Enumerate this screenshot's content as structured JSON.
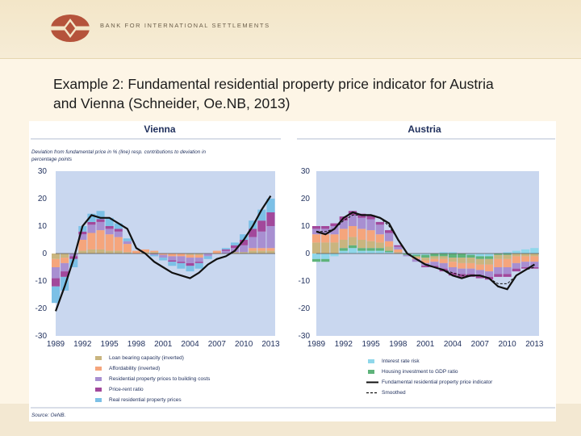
{
  "header": {
    "bank_name": "BANK FOR INTERNATIONAL SETTLEMENTS",
    "colors": {
      "logo": "#b5533b",
      "band": "#f3e6c8"
    }
  },
  "slide": {
    "title_line1": "Example 2: Fundamental residential property price indicator for Austria",
    "title_line2": "and Vienna (Schneider, Oe.NB, 2013)"
  },
  "figure": {
    "source": "Source: OeNB.",
    "colors": {
      "panel_bg": "#c9d7ef",
      "loan": "#c9b57f",
      "afford": "#f5a57c",
      "resid": "#a88fd1",
      "rent": "#a2489b",
      "real": "#7cc0e6",
      "interest": "#8fd7ea",
      "housing": "#5eb37a",
      "line": "#111111"
    }
  },
  "chart_data": [
    {
      "type": "area",
      "title": "Vienna",
      "subtitle_line1": "Deviation from fundamental price in % (line) resp. contributions to deviation in",
      "subtitle_line2": "percentage points",
      "xlim": [
        1989,
        2013.5
      ],
      "ylim": [
        -30,
        30
      ],
      "yticks": [
        30,
        20,
        10,
        0,
        -10,
        -20,
        -30
      ],
      "xticks": [
        1989,
        1992,
        1995,
        1998,
        2001,
        2004,
        2007,
        2010,
        2013
      ],
      "x": [
        1989,
        1990,
        1991,
        1992,
        1993,
        1994,
        1995,
        1996,
        1997,
        1998,
        1999,
        2000,
        2001,
        2002,
        2003,
        2004,
        2005,
        2006,
        2007,
        2008,
        2009,
        2010,
        2011,
        2012,
        2013
      ],
      "series": [
        {
          "name": "Loan bearing capacity (inverted)",
          "color_key": "loan",
          "values": [
            -2,
            -1.5,
            0,
            1,
            1.5,
            1.5,
            1,
            1,
            0.5,
            0,
            0.5,
            0.5,
            0,
            0,
            0,
            -0.5,
            -0.5,
            0,
            0,
            0,
            0.5,
            0.5,
            1,
            1,
            1
          ]
        },
        {
          "name": "Affordability (inverted)",
          "color_key": "afford",
          "values": [
            -3,
            -2,
            0,
            4,
            6,
            7,
            6,
            5,
            3,
            1,
            1,
            0.5,
            -0.5,
            -1,
            -1,
            -1,
            -1,
            0,
            1,
            0,
            0,
            0,
            1,
            1,
            1
          ]
        },
        {
          "name": "Residential property prices to building costs",
          "color_key": "resid",
          "values": [
            -4,
            -3,
            -1,
            2,
            3,
            3,
            2,
            2,
            1,
            0,
            0,
            -0.5,
            -1,
            -1.5,
            -2,
            -2,
            -1.5,
            -1,
            0,
            1,
            1.5,
            2.5,
            4,
            6,
            8
          ]
        },
        {
          "name": "Price-rent ratio",
          "color_key": "rent",
          "values": [
            -3,
            -2,
            -1,
            1,
            1,
            1,
            1,
            1,
            0,
            0,
            0,
            0,
            0,
            -0.5,
            -0.5,
            -1,
            -0.5,
            0,
            0,
            0.5,
            1,
            2,
            3,
            4,
            5
          ]
        },
        {
          "name": "Real residential property prices",
          "color_key": "real",
          "values": [
            -6,
            -5,
            -3,
            2,
            3,
            3,
            3,
            2,
            1,
            0,
            0,
            -0.5,
            -1,
            -1.5,
            -2,
            -2,
            -2,
            -1,
            0,
            0.5,
            1,
            2,
            3,
            4,
            5
          ]
        }
      ],
      "line": {
        "name": "Deviation from fundamental price",
        "values": [
          -21,
          -12,
          -2,
          10,
          14,
          13,
          13,
          11,
          9,
          2,
          0,
          -3,
          -5,
          -7,
          -8,
          -9,
          -7,
          -4,
          -2,
          -1,
          1,
          5,
          10,
          16,
          21
        ]
      },
      "legend": [
        {
          "label": "Loan bearing capacity (inverted)",
          "color_key": "loan"
        },
        {
          "label": "Affordability (inverted)",
          "color_key": "afford"
        },
        {
          "label": "Residential property prices to building costs",
          "color_key": "resid"
        },
        {
          "label": "Price-rent ratio",
          "color_key": "rent"
        },
        {
          "label": "Real residential property prices",
          "color_key": "real"
        }
      ]
    },
    {
      "type": "area",
      "title": "Austria",
      "xlim": [
        1989,
        2013.5
      ],
      "ylim": [
        -30,
        30
      ],
      "yticks": [
        30,
        20,
        10,
        0,
        -10,
        -20,
        -30
      ],
      "xticks": [
        1989,
        1992,
        1995,
        1998,
        2001,
        2004,
        2007,
        2010,
        2013
      ],
      "x": [
        1989,
        1990,
        1991,
        1992,
        1993,
        1994,
        1995,
        1996,
        1997,
        1998,
        1999,
        2000,
        2001,
        2002,
        2003,
        2004,
        2005,
        2006,
        2007,
        2008,
        2009,
        2010,
        2011,
        2012,
        2013
      ],
      "series": [
        {
          "name": "Interest rate risk",
          "color_key": "interest",
          "values": [
            -2,
            -2,
            -1,
            1,
            2,
            1,
            1,
            1,
            0.5,
            0,
            0,
            -0.5,
            -0.5,
            0,
            0.5,
            0.5,
            0,
            -0.5,
            -1,
            -1,
            0,
            0.5,
            1,
            1.5,
            2
          ]
        },
        {
          "name": "Housing investment to GDP ratio",
          "color_key": "housing",
          "values": [
            -1,
            -1,
            0,
            1,
            1,
            1,
            1,
            1,
            0.5,
            0,
            -0.5,
            -0.5,
            -1,
            -1,
            -1,
            -1.5,
            -1.5,
            -1,
            -1,
            -1,
            -0.5,
            -0.5,
            0,
            0,
            0
          ]
        },
        {
          "name": "Loan bearing capacity (inverted)",
          "color_key": "loan",
          "values": [
            4,
            4,
            4,
            3,
            3,
            3,
            2.5,
            2,
            1.5,
            0.5,
            0,
            -0.5,
            -1,
            -1,
            -1,
            -1.5,
            -2,
            -2,
            -2,
            -2,
            -1.5,
            -1.5,
            -1,
            -1,
            -1
          ]
        },
        {
          "name": "Affordability (inverted)",
          "color_key": "afford",
          "values": [
            3,
            3,
            3,
            4,
            4,
            4,
            4,
            3,
            2,
            1,
            0,
            -0.5,
            -1,
            -1,
            -1.5,
            -2,
            -2,
            -2,
            -2,
            -2.5,
            -3,
            -3,
            -2.5,
            -2,
            -2
          ]
        },
        {
          "name": "Residential property prices to building costs",
          "color_key": "resid",
          "values": [
            2,
            2,
            3,
            3,
            4,
            4,
            4,
            3.5,
            3,
            1,
            -0.5,
            -1,
            -1,
            -1.5,
            -2,
            -2,
            -2,
            -2,
            -2,
            -2,
            -2.5,
            -2.5,
            -2,
            -2,
            -2
          ]
        },
        {
          "name": "Price-rent ratio",
          "color_key": "rent",
          "values": [
            1,
            1,
            1,
            1.5,
            1.5,
            1.5,
            1.5,
            1,
            1,
            0.5,
            0,
            0,
            -0.5,
            -0.5,
            -1,
            -1,
            -1,
            -1,
            -1,
            -1,
            -1,
            -1,
            -1,
            -0.5,
            -0.5
          ]
        }
      ],
      "line": {
        "name": "Fundamental residential property price indicator",
        "values": [
          8,
          7,
          9,
          13,
          15,
          14,
          14,
          13,
          11,
          5,
          0,
          -2,
          -4,
          -5,
          -6,
          -8,
          -9,
          -8,
          -8,
          -9,
          -12,
          -13,
          -8,
          -6,
          -4
        ]
      },
      "smoothed": {
        "name": "Smoothed",
        "values": [
          8,
          8,
          9,
          12,
          14,
          14,
          14,
          13,
          10,
          5,
          0,
          -2,
          -4,
          -5,
          -6,
          -7,
          -8,
          -8,
          -8,
          -9,
          -11,
          -11,
          -8,
          -6,
          -5
        ]
      },
      "legend": [
        {
          "label": "Interest rate risk",
          "color_key": "interest",
          "kind": "bar"
        },
        {
          "label": "Housing investment to GDP ratio",
          "color_key": "housing",
          "kind": "bar"
        },
        {
          "label": "Fundamental residential property price indicator",
          "color_key": "line",
          "kind": "line"
        },
        {
          "label": "Smoothed",
          "color_key": "line",
          "kind": "dash"
        }
      ]
    }
  ]
}
